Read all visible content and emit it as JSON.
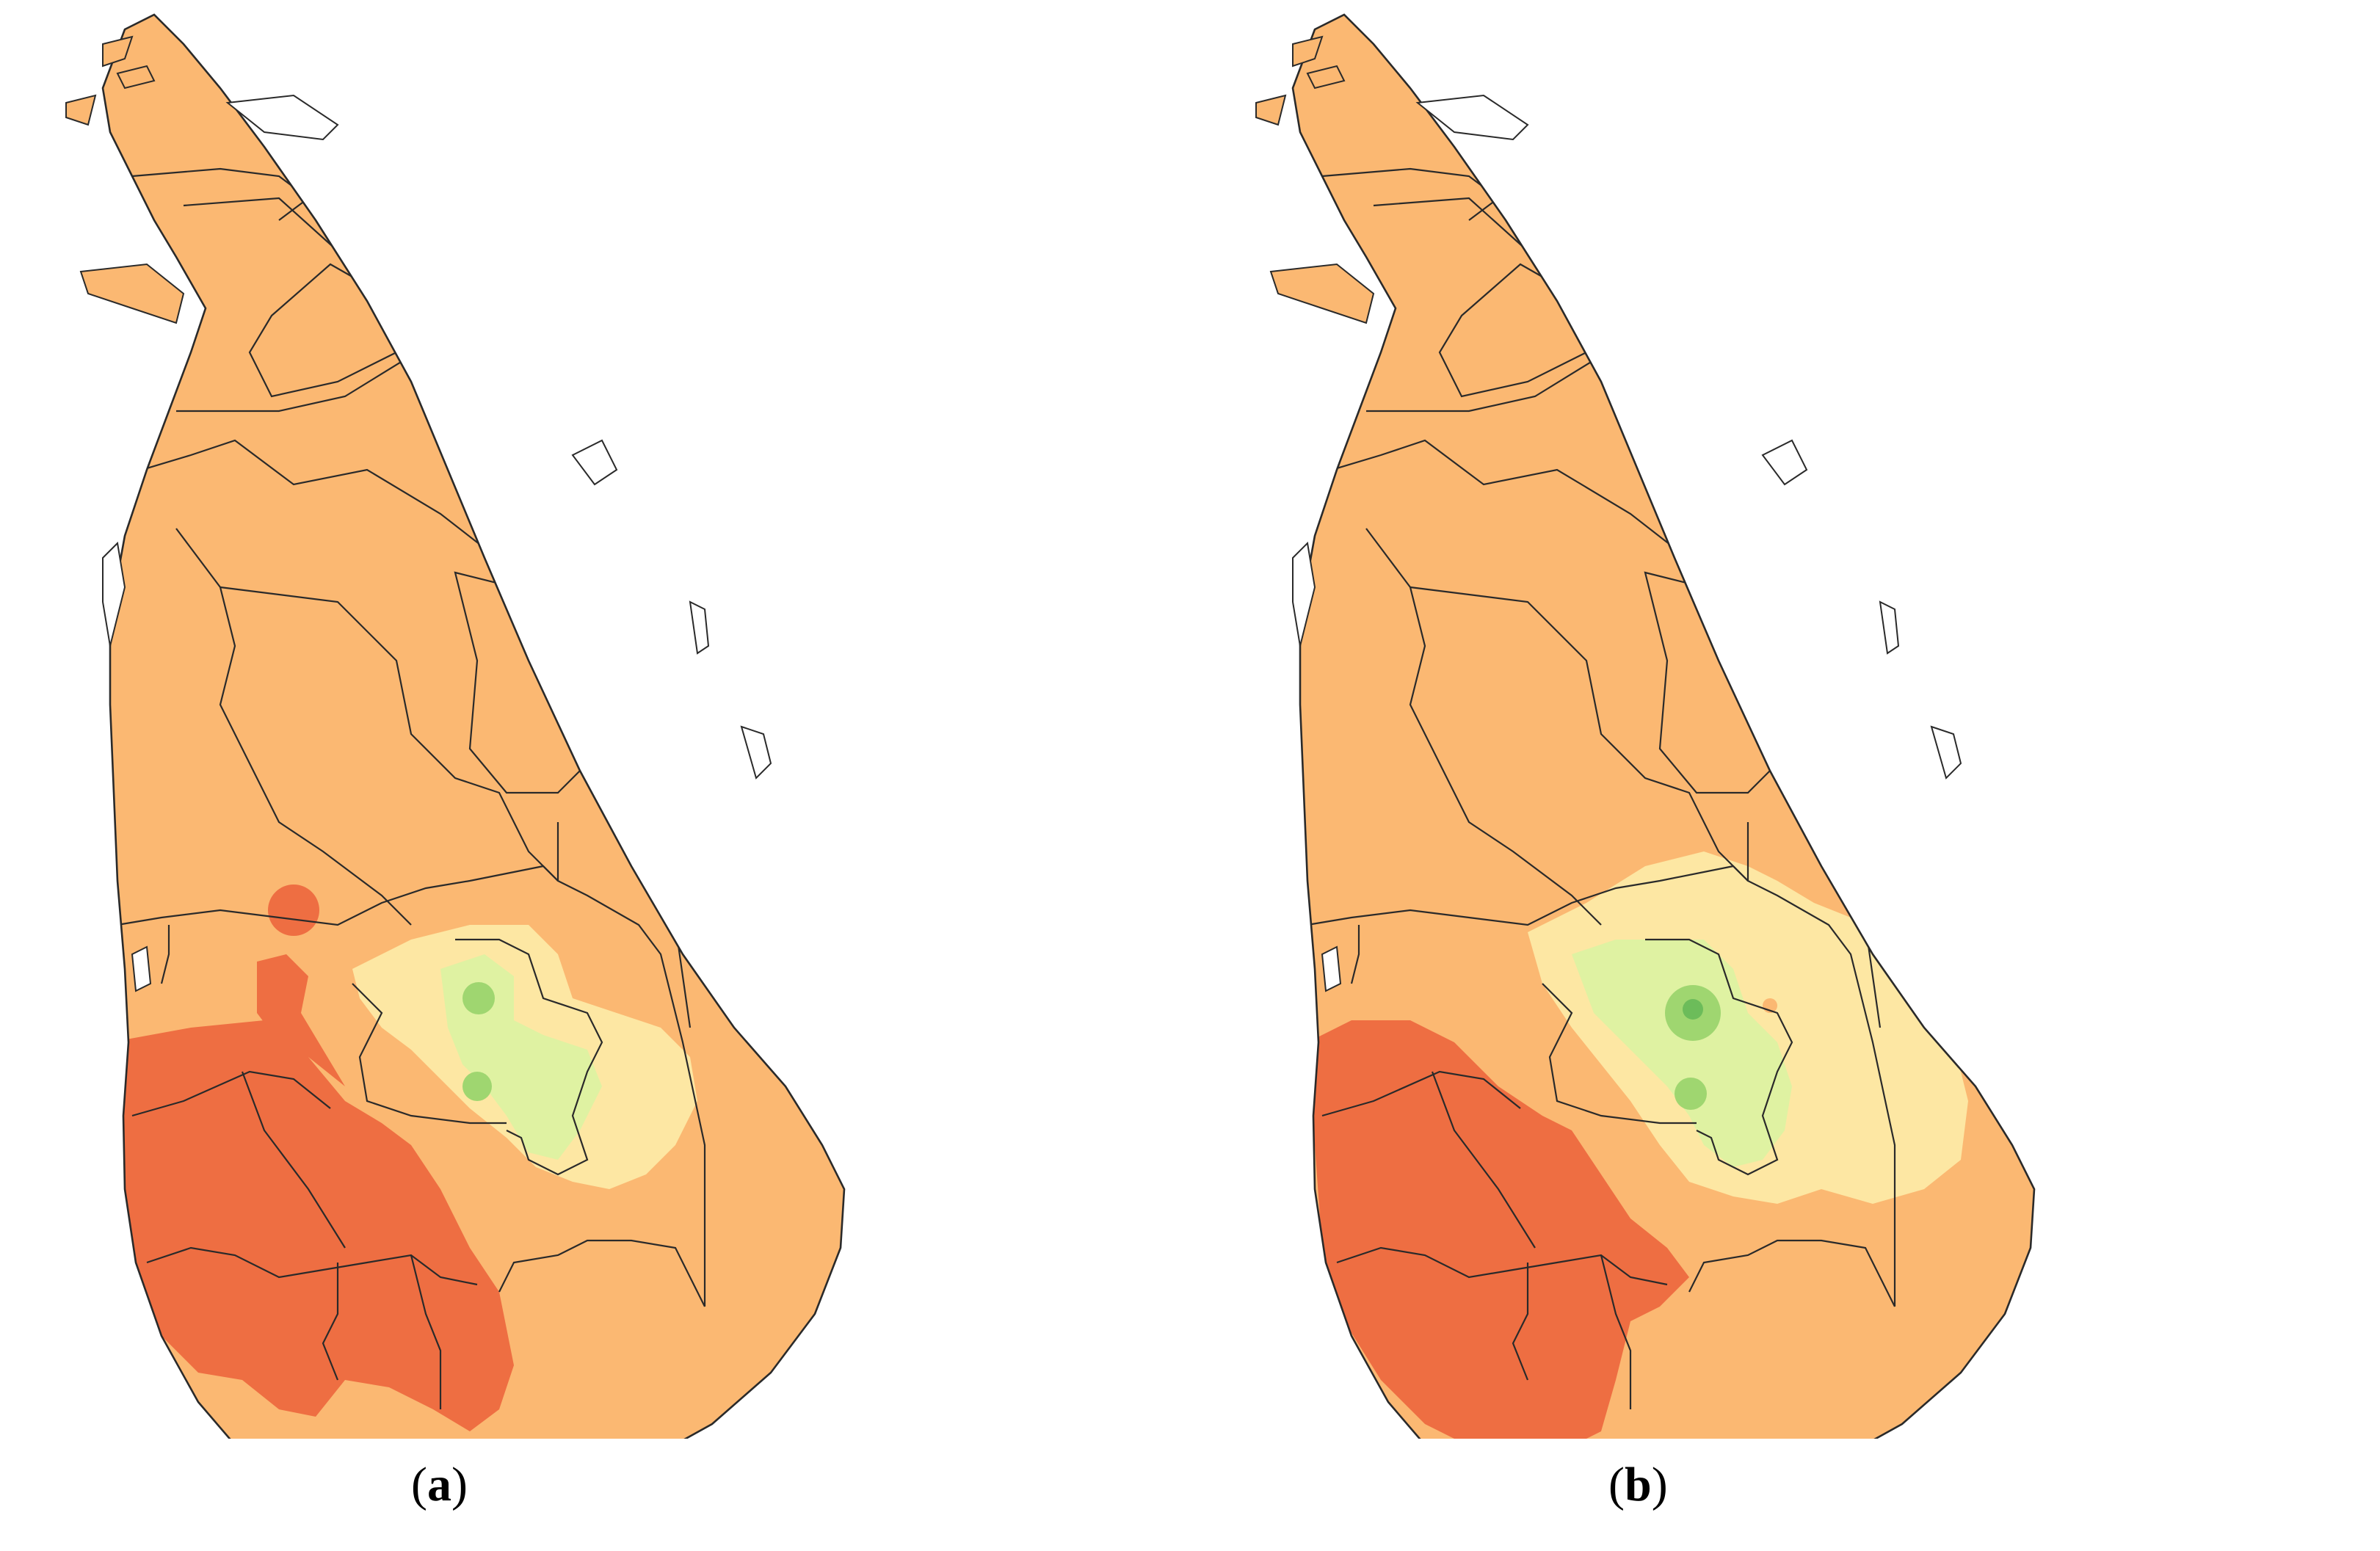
{
  "colors": {
    "background": "#ffffff",
    "base": "#fbb872",
    "dark": "#ee6e42",
    "pale": "#fde7a3",
    "light_green": "#dff2a2",
    "green": "#9fd670",
    "dark_green": "#6cbc5a",
    "border": "#2a2a2a",
    "water": "#ffffff"
  },
  "panels": [
    {
      "id": "a",
      "letter": "a"
    },
    {
      "id": "b",
      "letter": "b"
    }
  ]
}
